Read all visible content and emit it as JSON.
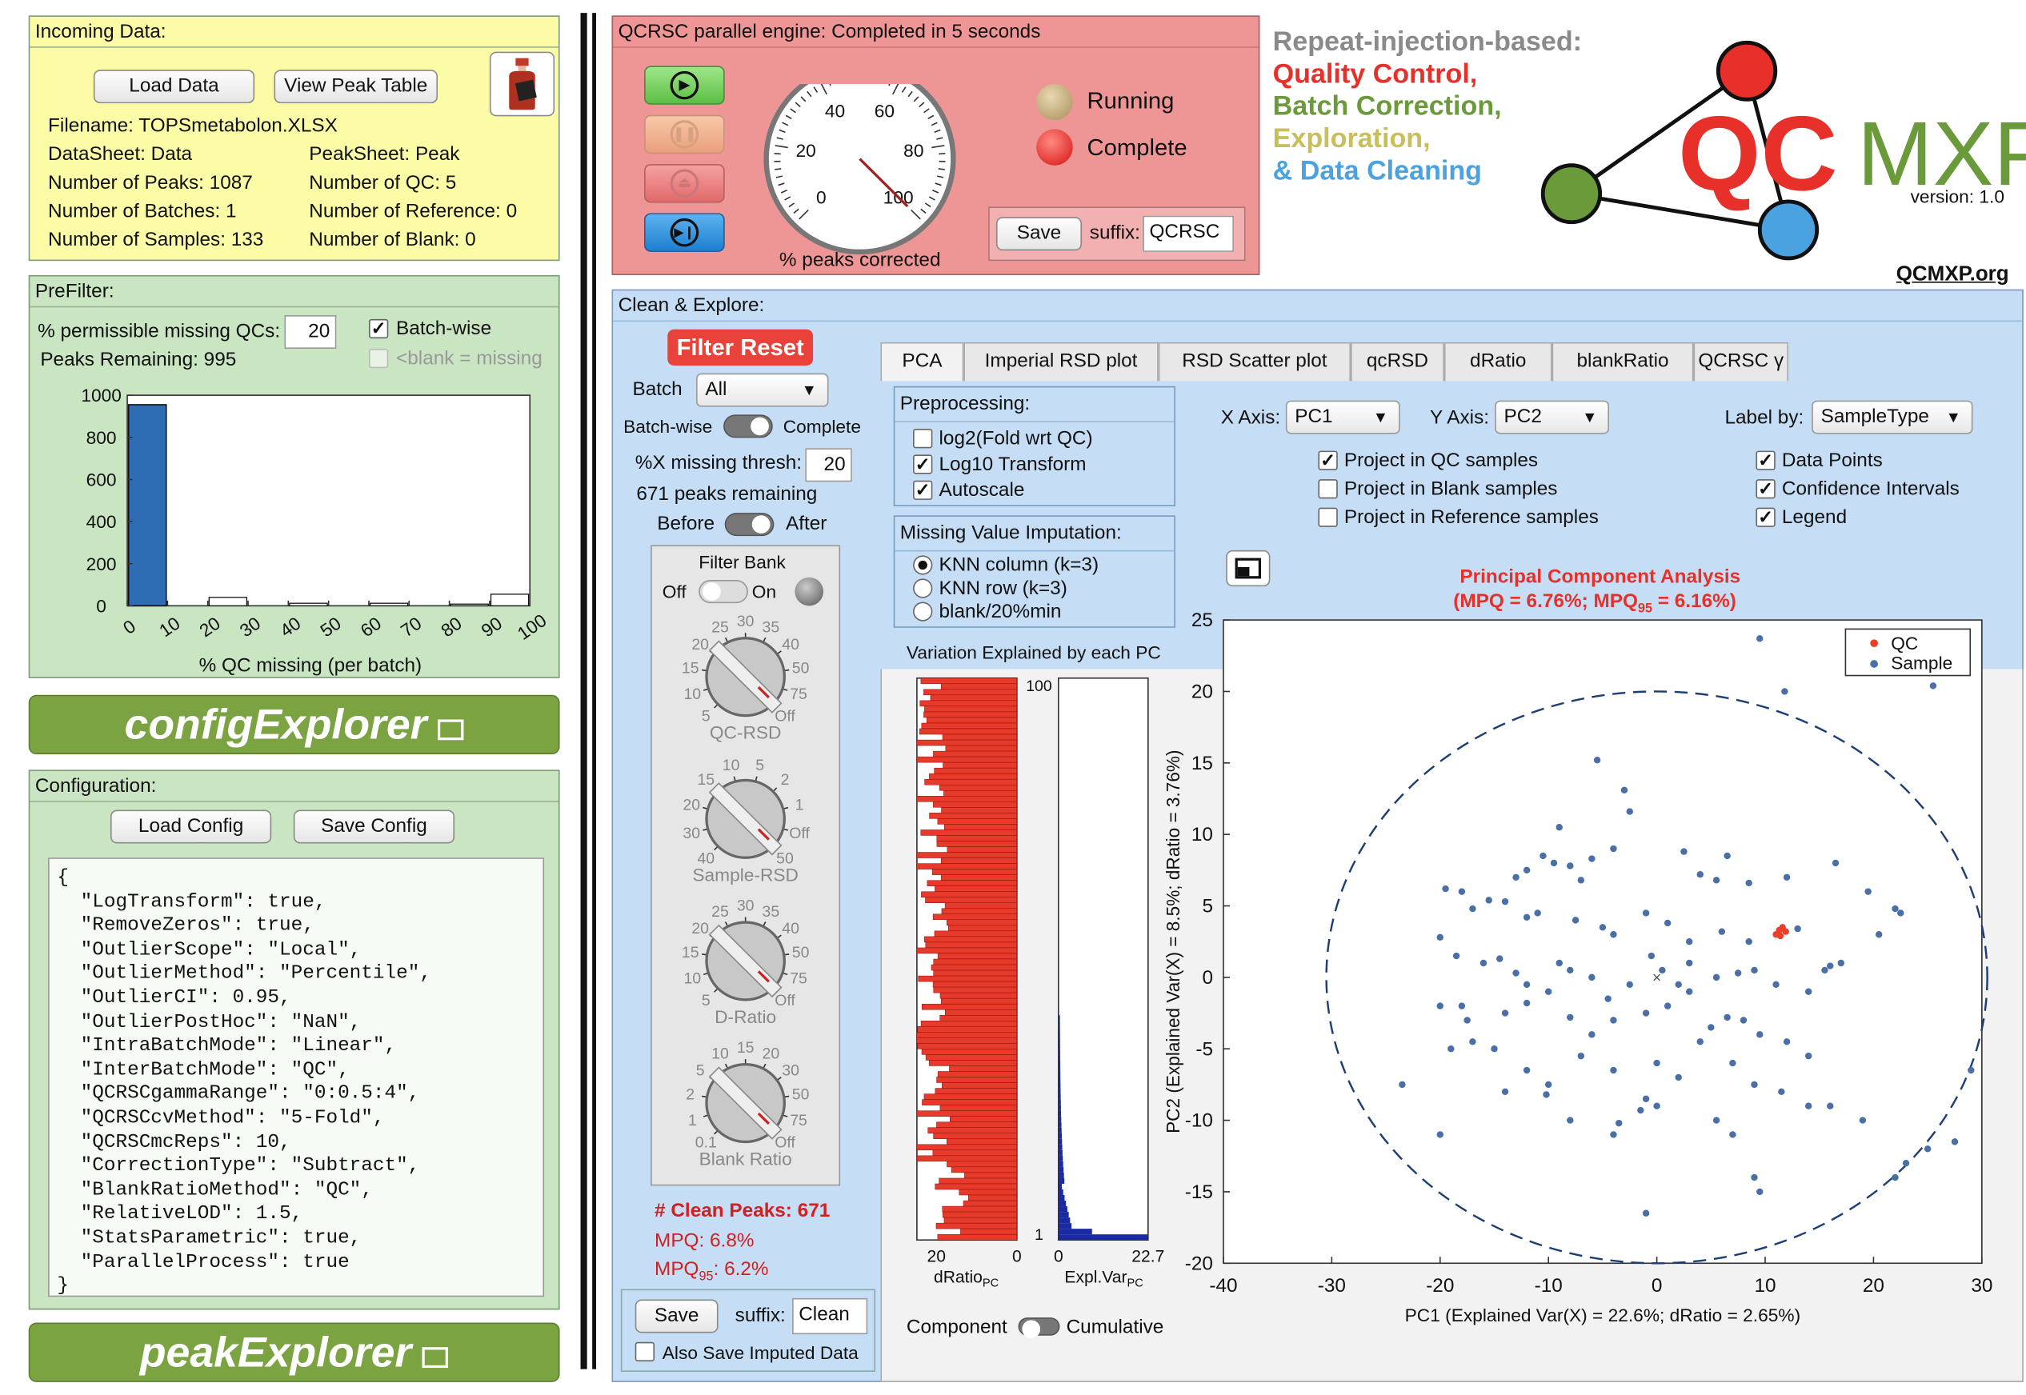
{
  "incoming": {
    "title": "Incoming Data:",
    "load_btn": "Load Data",
    "peak_table_btn": "View Peak Table",
    "filename": "Filename: TOPSmetabolon.XLSX",
    "datasheet": "DataSheet: Data",
    "peaksheet": "PeakSheet: Peak",
    "n_peaks": "Number of Peaks: 1087",
    "n_qc": "Number of QC: 5",
    "n_batches": "Number of Batches: 1",
    "n_ref": "Number of Reference: 0",
    "n_samples": "Number of Samples: 133",
    "n_blank": "Number of Blank: 0"
  },
  "prefilter": {
    "title": "PreFilter:",
    "missing_label": "% permissible missing QCs:",
    "missing_value": "20",
    "batchwise_label": "Batch-wise",
    "blank_missing_label": "<blank = missing",
    "remaining": "Peaks Remaining: 995",
    "xlabel": "% QC missing (per batch)"
  },
  "prefilter_chart": {
    "type": "bar",
    "categories": [
      "0-10",
      "10-20",
      "20-30",
      "30-40",
      "40-50",
      "50-60",
      "60-70",
      "70-80",
      "80-90",
      "90-100"
    ],
    "values": [
      955,
      0,
      40,
      0,
      12,
      0,
      12,
      0,
      8,
      55
    ],
    "ylim": [
      0,
      1000
    ],
    "xlim": [
      0,
      100
    ],
    "yticks": [
      "0",
      "200",
      "400",
      "600",
      "800",
      "1000"
    ],
    "xticks": [
      "0",
      "10",
      "20",
      "30",
      "40",
      "50",
      "60",
      "70",
      "80",
      "90",
      "100"
    ]
  },
  "config_explorer": {
    "label": "configExplorer"
  },
  "configuration": {
    "title": "Configuration:",
    "load_btn": "Load Config",
    "save_btn": "Save Config",
    "lines": [
      "{",
      "  \"LogTransform\": true,",
      "  \"RemoveZeros\": true,",
      "  \"OutlierScope\": \"Local\",",
      "  \"OutlierMethod\": \"Percentile\",",
      "  \"OutlierCI\": 0.95,",
      "  \"OutlierPostHoc\": \"NaN\",",
      "  \"IntraBatchMode\": \"Linear\",",
      "  \"InterBatchMode\": \"QC\",",
      "  \"QCRSCgammaRange\": \"0:0.5:4\",",
      "  \"QCRSCcvMethod\": \"5-Fold\",",
      "  \"QCRSCmcReps\": 10,",
      "  \"CorrectionType\": \"Subtract\",",
      "  \"BlankRatioMethod\": \"QC\",",
      "  \"RelativeLOD\": 1.5,",
      "  \"StatsParametric\": true,",
      "  \"ParallelProcess\": true",
      "}"
    ]
  },
  "peak_explorer": {
    "label": "peakExplorer"
  },
  "engine": {
    "title": "QCRSC parallel engine: Completed in 5 seconds",
    "gauge_ticks": [
      "0",
      "20",
      "40",
      "60",
      "80",
      "100"
    ],
    "gauge_value": 100,
    "gauge_label": "% peaks corrected",
    "running": "Running",
    "complete": "Complete",
    "save_btn": "Save",
    "suffix_label": "suffix:",
    "suffix_value": "QCRSC"
  },
  "logo": {
    "line1": "Repeat-injection-based:",
    "line2": "Quality Control,",
    "line3": "Batch Correction,",
    "line4": "Exploration,",
    "line5": "& Data Cleaning",
    "qc": "QC",
    "mxp": "MXP",
    "version": "version: 1.0",
    "site": "QCMXP.org",
    "colors": {
      "red": "#e8302a",
      "green": "#6a9a3a",
      "yellow": "#c8bf5a",
      "blue": "#4aa3e0"
    }
  },
  "clean": {
    "title": "Clean & Explore:",
    "filter_reset": "Filter Reset",
    "batch_label": "Batch",
    "batch_value": "All",
    "batchwise": "Batch-wise",
    "complete": "Complete",
    "thresh_label": "%X missing thresh:",
    "thresh_value": "20",
    "remaining": "671 peaks remaining",
    "before": "Before",
    "after": "After",
    "filter_bank": "Filter Bank",
    "off": "Off",
    "on": "On",
    "knobs": [
      {
        "name": "QC-RSD",
        "ticks": [
          "5",
          "10",
          "15",
          "20",
          "25",
          "30",
          "35",
          "40",
          "50",
          "75",
          "Off"
        ]
      },
      {
        "name": "Sample-RSD",
        "ticks": [
          "40",
          "30",
          "20",
          "15",
          "10",
          "5",
          "2",
          "1",
          "Off",
          "50"
        ]
      },
      {
        "name": "D-Ratio",
        "ticks": [
          "5",
          "10",
          "15",
          "20",
          "25",
          "30",
          "35",
          "40",
          "50",
          "75",
          "Off"
        ]
      },
      {
        "name": "Blank Ratio",
        "ticks": [
          "0.1",
          "1",
          "2",
          "5",
          "10",
          "15",
          "20",
          "30",
          "50",
          "75",
          "Off"
        ]
      }
    ],
    "clean_peaks": "# Clean Peaks: 671",
    "mpq": "MPQ: 6.8%",
    "mpq95_pre": "MPQ",
    "mpq95_sub": "95",
    "mpq95_post": ": 6.2%",
    "save_btn": "Save",
    "suffix_label": "suffix:",
    "suffix_value": "Clean",
    "also_save": "Also Save Imputed Data"
  },
  "tabs": [
    "PCA",
    "Imperial RSD plot",
    "RSD Scatter plot",
    "qcRSD",
    "dRatio",
    "blankRatio",
    "QCRSC γ"
  ],
  "pca": {
    "preproc_title": "Preprocessing:",
    "log2": "log2(Fold wrt QC)",
    "log10": "Log10 Transform",
    "autoscale": "Autoscale",
    "mvi_title": "Missing Value Imputation:",
    "knn_col": "KNN column (k=3)",
    "knn_row": "KNN row (k=3)",
    "blank20": "blank/20%min",
    "x_axis_label": "X Axis:",
    "x_axis_value": "PC1",
    "y_axis_label": "Y Axis:",
    "y_axis_value": "PC2",
    "label_by": "Label by:",
    "label_by_value": "SampleType",
    "proj_qc": "Project in QC samples",
    "proj_blank": "Project in Blank samples",
    "proj_ref": "Project in Reference samples",
    "data_points": "Data Points",
    "conf_int": "Confidence Intervals",
    "legend": "Legend",
    "var_title": "Variation Explained by each PC",
    "dratio_label": "dRatio",
    "dratio_sub": "PC",
    "explvar_label": "Expl.Var",
    "explvar_sub": "PC",
    "bar_axis_left": [
      "20",
      "0"
    ],
    "bar_axis_right": [
      "0",
      "22.7"
    ],
    "bar_top": "100",
    "bar_bottom": "1",
    "component": "Component",
    "cumulative": "Cumulative",
    "plot_title1": "Principal  Component  Analysis",
    "plot_title2_a": "(MPQ = 6.76%;  MPQ",
    "plot_title2_sub": "95",
    "plot_title2_b": " = 6.16%)",
    "xlabel": "PC1 (Explained Var(X) = 22.6%; dRatio = 2.65%)",
    "ylabel": "PC2 (Explained Var(X) = 8.5%; dRatio = 3.76%)",
    "legend_qc": "QC",
    "legend_sample": "Sample"
  },
  "chart_data": {
    "type": "scatter",
    "xlim": [
      -40,
      30
    ],
    "ylim": [
      -20,
      25
    ],
    "xticks": [
      -40,
      -30,
      -20,
      -10,
      0,
      10,
      20,
      30
    ],
    "yticks": [
      -20,
      -15,
      -10,
      -5,
      0,
      5,
      10,
      15,
      20,
      25
    ],
    "series": [
      {
        "name": "QC",
        "color": "#e8402a",
        "points": [
          [
            11,
            3
          ],
          [
            11.3,
            3.3
          ],
          [
            11.6,
            3.5
          ],
          [
            11.9,
            3.2
          ],
          [
            11.4,
            2.9
          ]
        ]
      },
      {
        "name": "Sample",
        "color": "#4a6fa5",
        "points": [
          [
            9.5,
            23.7
          ],
          [
            11.8,
            20
          ],
          [
            25.5,
            20.4
          ],
          [
            -5.5,
            15.2
          ],
          [
            -3,
            13.1
          ],
          [
            -2.5,
            11.6
          ],
          [
            -9,
            10.5
          ],
          [
            -4,
            9
          ],
          [
            -10.5,
            8.5
          ],
          [
            -9.5,
            8
          ],
          [
            -8,
            7.8
          ],
          [
            -7,
            6.8
          ],
          [
            -12,
            7.5
          ],
          [
            -13,
            7
          ],
          [
            -6,
            8.3
          ],
          [
            2.5,
            8.8
          ],
          [
            6.5,
            8.5
          ],
          [
            4,
            7.2
          ],
          [
            5.5,
            6.8
          ],
          [
            8.5,
            6.6
          ],
          [
            12,
            7
          ],
          [
            16.5,
            8
          ],
          [
            19.5,
            6
          ],
          [
            22,
            4.8
          ],
          [
            -19.5,
            6.2
          ],
          [
            -18,
            6
          ],
          [
            -15.5,
            5.4
          ],
          [
            -17,
            4.8
          ],
          [
            -14,
            5.3
          ],
          [
            -12,
            4.2
          ],
          [
            -11,
            4.5
          ],
          [
            -7.5,
            4
          ],
          [
            -5,
            3.5
          ],
          [
            -4,
            3
          ],
          [
            -1,
            4.5
          ],
          [
            1,
            3.8
          ],
          [
            3,
            2.5
          ],
          [
            6,
            3.2
          ],
          [
            8.5,
            2.5
          ],
          [
            13,
            3.4
          ],
          [
            15.5,
            0.5
          ],
          [
            17,
            1
          ],
          [
            20.5,
            3
          ],
          [
            22.5,
            4.5
          ],
          [
            -20,
            2.8
          ],
          [
            -18.5,
            1.5
          ],
          [
            -16,
            1
          ],
          [
            -14.5,
            1.3
          ],
          [
            -13,
            0.3
          ],
          [
            -12,
            -0.5
          ],
          [
            -9,
            1
          ],
          [
            -8,
            0.5
          ],
          [
            -6,
            0
          ],
          [
            -4.5,
            -1.5
          ],
          [
            -2.5,
            -0.5
          ],
          [
            -0.5,
            1.5
          ],
          [
            0.5,
            0.5
          ],
          [
            2,
            -0.5
          ],
          [
            3,
            1
          ],
          [
            5.5,
            0
          ],
          [
            7.5,
            0.3
          ],
          [
            9,
            0.5
          ],
          [
            11,
            -0.5
          ],
          [
            14,
            -1
          ],
          [
            16,
            0.8
          ],
          [
            -20,
            -2
          ],
          [
            -18,
            -2
          ],
          [
            -17.5,
            -3
          ],
          [
            -14,
            -2.5
          ],
          [
            -12,
            -1.8
          ],
          [
            -10,
            -1
          ],
          [
            -8,
            -2.8
          ],
          [
            -6,
            -4
          ],
          [
            -4,
            -3
          ],
          [
            -1,
            -2.5
          ],
          [
            1,
            -2
          ],
          [
            3,
            -1
          ],
          [
            5,
            -3.5
          ],
          [
            6.5,
            -2.8
          ],
          [
            8,
            -3
          ],
          [
            9.5,
            -4
          ],
          [
            12,
            -4.5
          ],
          [
            14,
            -5.5
          ],
          [
            -19,
            -5
          ],
          [
            -17,
            -4.5
          ],
          [
            -15,
            -5
          ],
          [
            -12,
            -6.5
          ],
          [
            -10,
            -7.5
          ],
          [
            -7,
            -5.5
          ],
          [
            -4,
            -6.5
          ],
          [
            0,
            -6
          ],
          [
            2,
            -7
          ],
          [
            4,
            -4.5
          ],
          [
            7,
            -6
          ],
          [
            9,
            -7.5
          ],
          [
            11.5,
            -8
          ],
          [
            14,
            -9
          ],
          [
            -23.5,
            -7.5
          ],
          [
            -14,
            -8
          ],
          [
            -10.2,
            -8.2
          ],
          [
            -8,
            -10
          ],
          [
            -4,
            -11
          ],
          [
            -1,
            -8.5
          ],
          [
            0,
            -9
          ],
          [
            -3.5,
            -10.2
          ],
          [
            -1.5,
            -9.3
          ],
          [
            16,
            -9
          ],
          [
            19,
            -10
          ],
          [
            23,
            -13
          ],
          [
            25,
            -12
          ],
          [
            27.5,
            -11.5
          ],
          [
            22,
            -14
          ],
          [
            9,
            -14
          ],
          [
            9.5,
            -15
          ],
          [
            -1,
            -16.5
          ],
          [
            5.5,
            -10
          ],
          [
            7,
            -11
          ],
          [
            29,
            -6.5
          ],
          [
            -20,
            -11
          ]
        ]
      }
    ]
  }
}
